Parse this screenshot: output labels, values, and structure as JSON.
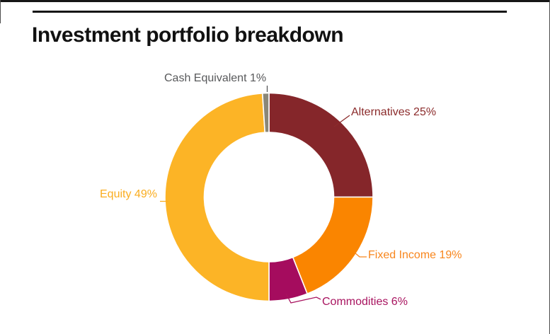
{
  "chart_data": {
    "type": "pie",
    "subtype": "donut",
    "title": "Investment portfolio breakdown",
    "start_angle_deg": 0,
    "direction": "clockwise",
    "inner_radius_ratio": 0.62,
    "legend_position": "callout-labels",
    "slices": [
      {
        "name": "Alternatives",
        "value": 25,
        "unit": "%",
        "label": "Alternatives 25%",
        "color": "#85262A",
        "label_color": "#8B2B2B"
      },
      {
        "name": "Fixed Income",
        "value": 19,
        "unit": "%",
        "label": "Fixed Income 19%",
        "color": "#FA8500",
        "label_color": "#F8861D"
      },
      {
        "name": "Commodities",
        "value": 6,
        "unit": "%",
        "label": "Commodities 6%",
        "color": "#A50C5E",
        "label_color": "#A8135F"
      },
      {
        "name": "Equity",
        "value": 49,
        "unit": "%",
        "label": "Equity 49%",
        "color": "#FCB426",
        "label_color": "#FAAD20"
      },
      {
        "name": "Cash Equivalent",
        "value": 1,
        "unit": "%",
        "label": "Cash Equivalent 1%",
        "color": "#8A8778",
        "label_color": "#58595B"
      }
    ]
  }
}
